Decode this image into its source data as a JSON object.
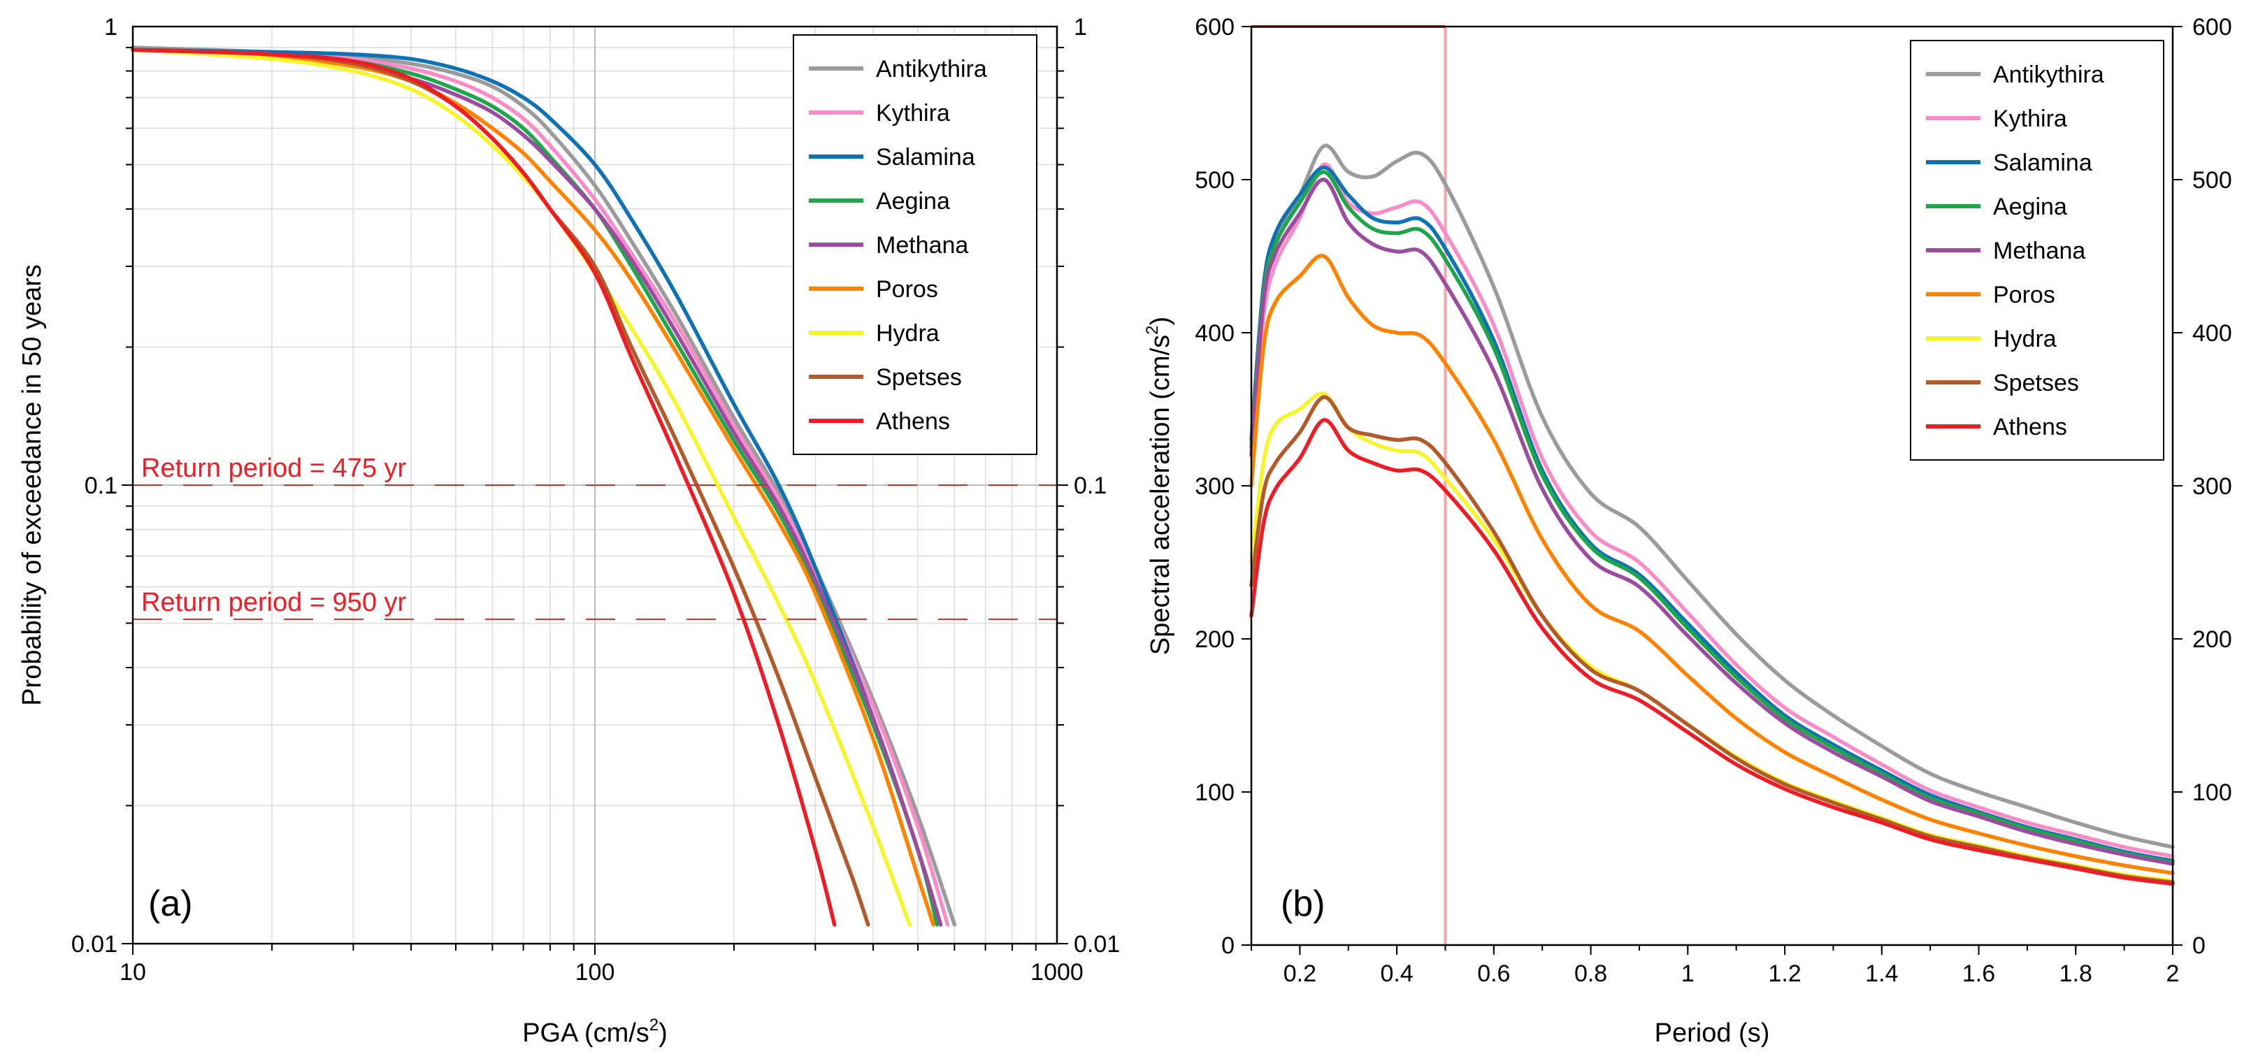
{
  "figure": {
    "series_colors": {
      "Antikythira": "#9b9b9b",
      "Kythira": "#f98cc8",
      "Salamina": "#0f72b5",
      "Aegina": "#1fa64a",
      "Methana": "#9b4c9e",
      "Poros": "#ff8200",
      "Hydra": "#f5f52a",
      "Spetses": "#b35a2a",
      "Athens": "#ee1c25"
    },
    "reference_color": "#ee1c25"
  },
  "chart_data": [
    {
      "id": "a",
      "type": "line",
      "panel_label": "(a)",
      "title": "",
      "xlabel": "PGA (cm/s",
      "xlabel_sup": "2",
      "xlabel_end": ")",
      "ylabel": "Probability of exceedance in 50 years",
      "xscale": "log",
      "yscale": "log",
      "xlim": [
        10,
        1000
      ],
      "ylim": [
        0.01,
        1
      ],
      "x_ticks": [
        10,
        100,
        1000
      ],
      "x_tick_labels": [
        "10",
        "100",
        "1000"
      ],
      "y_ticks": [
        0.01,
        0.1,
        1
      ],
      "y_tick_labels": [
        "0.01",
        "0.1",
        "1"
      ],
      "right_y_tick_labels": [
        "0.01",
        "0.1",
        "1"
      ],
      "grid": true,
      "legend_position": "top-right",
      "reference_lines": [
        {
          "y": 0.1,
          "label": "Return period = 475 yr"
        },
        {
          "y": 0.051,
          "label": "Return period = 950 yr"
        }
      ],
      "series": [
        {
          "name": "Antikythira",
          "x": [
            10,
            20,
            30,
            40,
            50,
            60,
            70,
            80,
            100,
            120,
            150,
            200,
            250,
            300,
            400,
            500,
            600
          ],
          "y": [
            0.9,
            0.88,
            0.86,
            0.83,
            0.79,
            0.74,
            0.67,
            0.59,
            0.45,
            0.34,
            0.235,
            0.14,
            0.096,
            0.066,
            0.034,
            0.019,
            0.011
          ]
        },
        {
          "name": "Kythira",
          "x": [
            10,
            20,
            30,
            40,
            50,
            60,
            70,
            80,
            100,
            120,
            150,
            200,
            250,
            300,
            400,
            500,
            580
          ],
          "y": [
            0.89,
            0.87,
            0.85,
            0.81,
            0.76,
            0.7,
            0.63,
            0.55,
            0.42,
            0.32,
            0.225,
            0.135,
            0.093,
            0.064,
            0.033,
            0.018,
            0.011
          ]
        },
        {
          "name": "Salamina",
          "x": [
            10,
            20,
            30,
            40,
            50,
            60,
            70,
            80,
            100,
            120,
            150,
            200,
            250,
            300,
            400,
            500,
            560
          ],
          "y": [
            0.89,
            0.88,
            0.87,
            0.85,
            0.81,
            0.76,
            0.7,
            0.63,
            0.5,
            0.38,
            0.26,
            0.15,
            0.1,
            0.066,
            0.031,
            0.016,
            0.011
          ]
        },
        {
          "name": "Aegina",
          "x": [
            10,
            20,
            30,
            40,
            50,
            60,
            70,
            80,
            100,
            120,
            150,
            200,
            250,
            300,
            400,
            500,
            550
          ],
          "y": [
            0.89,
            0.87,
            0.84,
            0.79,
            0.73,
            0.67,
            0.6,
            0.52,
            0.4,
            0.3,
            0.205,
            0.125,
            0.087,
            0.06,
            0.03,
            0.016,
            0.011
          ]
        },
        {
          "name": "Methana",
          "x": [
            10,
            20,
            30,
            40,
            50,
            60,
            70,
            80,
            100,
            120,
            150,
            200,
            250,
            300,
            400,
            500,
            560
          ],
          "y": [
            0.89,
            0.86,
            0.82,
            0.77,
            0.71,
            0.65,
            0.58,
            0.51,
            0.4,
            0.31,
            0.215,
            0.13,
            0.09,
            0.062,
            0.031,
            0.016,
            0.011
          ]
        },
        {
          "name": "Poros",
          "x": [
            10,
            20,
            30,
            40,
            50,
            60,
            70,
            80,
            100,
            120,
            150,
            200,
            250,
            300,
            400,
            500,
            540
          ],
          "y": [
            0.89,
            0.86,
            0.82,
            0.76,
            0.68,
            0.6,
            0.53,
            0.46,
            0.36,
            0.28,
            0.195,
            0.12,
            0.083,
            0.058,
            0.028,
            0.014,
            0.011
          ]
        },
        {
          "name": "Hydra",
          "x": [
            10,
            20,
            30,
            40,
            50,
            60,
            70,
            80,
            100,
            120,
            150,
            200,
            250,
            300,
            400,
            480
          ],
          "y": [
            0.89,
            0.85,
            0.8,
            0.73,
            0.64,
            0.55,
            0.47,
            0.4,
            0.29,
            0.22,
            0.15,
            0.085,
            0.055,
            0.037,
            0.018,
            0.011
          ]
        },
        {
          "name": "Spetses",
          "x": [
            10,
            20,
            30,
            40,
            50,
            60,
            70,
            80,
            100,
            120,
            150,
            200,
            250,
            300,
            360,
            390
          ],
          "y": [
            0.89,
            0.87,
            0.83,
            0.76,
            0.67,
            0.57,
            0.48,
            0.4,
            0.3,
            0.2,
            0.125,
            0.066,
            0.038,
            0.023,
            0.014,
            0.011
          ]
        },
        {
          "name": "Athens",
          "x": [
            10,
            20,
            30,
            40,
            50,
            60,
            70,
            80,
            100,
            120,
            150,
            200,
            250,
            300,
            330
          ],
          "y": [
            0.89,
            0.87,
            0.84,
            0.77,
            0.67,
            0.57,
            0.48,
            0.4,
            0.29,
            0.19,
            0.115,
            0.058,
            0.03,
            0.016,
            0.011
          ]
        }
      ]
    },
    {
      "id": "b",
      "type": "line",
      "panel_label": "(b)",
      "title": "",
      "xlabel": "Period (s)",
      "ylabel": "Spectral acceleration (cm/s",
      "ylabel_sup": "2",
      "ylabel_end": ")",
      "xscale": "linear",
      "yscale": "linear",
      "xlim": [
        0.1,
        2
      ],
      "ylim": [
        0,
        600
      ],
      "x_ticks": [
        0.2,
        0.4,
        0.6,
        0.8,
        1,
        1.2,
        1.4,
        1.6,
        1.8,
        2
      ],
      "x_tick_labels": [
        "0.2",
        "0.4",
        "0.6",
        "0.8",
        "1",
        "1.2",
        "1.4",
        "1.6",
        "1.8",
        "2"
      ],
      "y_ticks": [
        0,
        100,
        200,
        300,
        400,
        500,
        600
      ],
      "y_tick_labels": [
        "0",
        "100",
        "200",
        "300",
        "400",
        "500",
        "600"
      ],
      "right_y_tick_labels": [
        "0",
        "100",
        "200",
        "300",
        "400",
        "500",
        "600"
      ],
      "grid": false,
      "legend_position": "top-right",
      "reference_lines": [
        {
          "x": 0.5,
          "label": ""
        }
      ],
      "series": [
        {
          "name": "Antikythira",
          "x": [
            0.1,
            0.125,
            0.15,
            0.2,
            0.25,
            0.3,
            0.35,
            0.4,
            0.45,
            0.5,
            0.6,
            0.7,
            0.8,
            0.9,
            1.0,
            1.1,
            1.2,
            1.3,
            1.4,
            1.5,
            1.6,
            1.7,
            1.8,
            1.9,
            2.0
          ],
          "y": [
            330,
            420,
            460,
            490,
            522,
            505,
            502,
            512,
            517,
            497,
            430,
            345,
            295,
            273,
            238,
            203,
            173,
            150,
            130,
            112,
            100,
            90,
            80,
            71,
            64
          ]
        },
        {
          "name": "Kythira",
          "x": [
            0.1,
            0.125,
            0.15,
            0.2,
            0.25,
            0.3,
            0.35,
            0.4,
            0.45,
            0.5,
            0.6,
            0.7,
            0.8,
            0.9,
            1.0,
            1.1,
            1.2,
            1.3,
            1.4,
            1.5,
            1.6,
            1.7,
            1.8,
            1.9,
            2.0
          ],
          "y": [
            320,
            410,
            445,
            475,
            510,
            485,
            478,
            482,
            485,
            465,
            405,
            318,
            270,
            250,
            217,
            183,
            155,
            136,
            118,
            101,
            90,
            80,
            72,
            64,
            58
          ]
        },
        {
          "name": "Salamina",
          "x": [
            0.1,
            0.125,
            0.15,
            0.2,
            0.25,
            0.3,
            0.35,
            0.4,
            0.45,
            0.5,
            0.6,
            0.7,
            0.8,
            0.9,
            1.0,
            1.1,
            1.2,
            1.3,
            1.4,
            1.5,
            1.6,
            1.7,
            1.8,
            1.9,
            2.0
          ],
          "y": [
            330,
            430,
            465,
            490,
            508,
            490,
            475,
            472,
            474,
            455,
            395,
            310,
            262,
            242,
            210,
            178,
            150,
            131,
            114,
            98,
            87,
            77,
            69,
            61,
            55
          ]
        },
        {
          "name": "Aegina",
          "x": [
            0.1,
            0.125,
            0.15,
            0.2,
            0.25,
            0.3,
            0.35,
            0.4,
            0.45,
            0.5,
            0.6,
            0.7,
            0.8,
            0.9,
            1.0,
            1.1,
            1.2,
            1.3,
            1.4,
            1.5,
            1.6,
            1.7,
            1.8,
            1.9,
            2.0
          ],
          "y": [
            325,
            425,
            458,
            485,
            505,
            482,
            468,
            465,
            467,
            448,
            390,
            307,
            260,
            240,
            207,
            175,
            148,
            129,
            112,
            96,
            86,
            76,
            68,
            60,
            54
          ]
        },
        {
          "name": "Methana",
          "x": [
            0.1,
            0.125,
            0.15,
            0.2,
            0.25,
            0.3,
            0.35,
            0.4,
            0.45,
            0.5,
            0.6,
            0.7,
            0.8,
            0.9,
            1.0,
            1.1,
            1.2,
            1.3,
            1.4,
            1.5,
            1.6,
            1.7,
            1.8,
            1.9,
            2.0
          ],
          "y": [
            320,
            420,
            452,
            478,
            500,
            472,
            458,
            453,
            453,
            432,
            375,
            298,
            252,
            234,
            202,
            171,
            145,
            126,
            110,
            94,
            84,
            74,
            66,
            59,
            53
          ]
        },
        {
          "name": "Poros",
          "x": [
            0.1,
            0.125,
            0.15,
            0.2,
            0.25,
            0.3,
            0.35,
            0.4,
            0.45,
            0.5,
            0.6,
            0.7,
            0.8,
            0.9,
            1.0,
            1.1,
            1.2,
            1.3,
            1.4,
            1.5,
            1.6,
            1.7,
            1.8,
            1.9,
            2.0
          ],
          "y": [
            300,
            390,
            420,
            437,
            450,
            423,
            405,
            400,
            398,
            380,
            330,
            265,
            222,
            205,
            176,
            148,
            126,
            110,
            95,
            82,
            73,
            65,
            58,
            52,
            47
          ]
        },
        {
          "name": "Hydra",
          "x": [
            0.1,
            0.125,
            0.15,
            0.2,
            0.25,
            0.3,
            0.35,
            0.4,
            0.45,
            0.5,
            0.6,
            0.7,
            0.8,
            0.9,
            1.0,
            1.1,
            1.2,
            1.3,
            1.4,
            1.5,
            1.6,
            1.7,
            1.8,
            1.9,
            2.0
          ],
          "y": [
            250,
            315,
            340,
            350,
            360,
            338,
            328,
            323,
            321,
            305,
            265,
            215,
            182,
            166,
            144,
            123,
            106,
            94,
            83,
            72,
            65,
            58,
            52,
            46,
            42
          ]
        },
        {
          "name": "Spetses",
          "x": [
            0.1,
            0.125,
            0.15,
            0.2,
            0.25,
            0.3,
            0.35,
            0.4,
            0.45,
            0.5,
            0.6,
            0.7,
            0.8,
            0.9,
            1.0,
            1.1,
            1.2,
            1.3,
            1.4,
            1.5,
            1.6,
            1.7,
            1.8,
            1.9,
            2.0
          ],
          "y": [
            235,
            295,
            315,
            335,
            358,
            338,
            333,
            330,
            330,
            315,
            270,
            215,
            180,
            166,
            144,
            122,
            105,
            93,
            82,
            71,
            64,
            57,
            51,
            45,
            41
          ]
        },
        {
          "name": "Athens",
          "x": [
            0.1,
            0.125,
            0.15,
            0.2,
            0.25,
            0.3,
            0.35,
            0.4,
            0.45,
            0.5,
            0.6,
            0.7,
            0.8,
            0.9,
            1.0,
            1.1,
            1.2,
            1.3,
            1.4,
            1.5,
            1.6,
            1.7,
            1.8,
            1.9,
            2.0
          ],
          "y": [
            215,
            275,
            298,
            318,
            343,
            323,
            315,
            310,
            310,
            297,
            258,
            207,
            174,
            160,
            139,
            118,
            102,
            90,
            80,
            69,
            62,
            56,
            50,
            44,
            40
          ]
        }
      ]
    }
  ]
}
